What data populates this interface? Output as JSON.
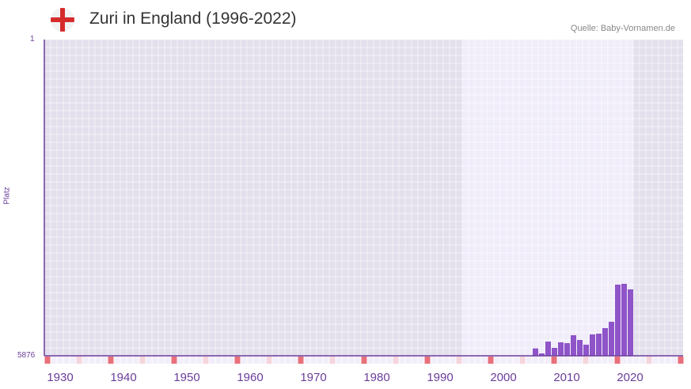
{
  "header": {
    "title": "Zuri in England (1996-2022)",
    "source": "Quelle: Baby-Vornamen.de",
    "flag_icon": "england-flag-icon"
  },
  "chart_data": {
    "type": "bar",
    "title": "Zuri in England (1996-2022)",
    "ylabel": "Platz",
    "ylim": [
      5876,
      1
    ],
    "y_ticks": [
      "1",
      "5876"
    ],
    "xlim": [
      1928,
      2028
    ],
    "x_ticks": [
      "1930",
      "1940",
      "1950",
      "1960",
      "1970",
      "1980",
      "1990",
      "2000",
      "2010",
      "2020"
    ],
    "highlight_range": [
      1994,
      2020
    ],
    "x": [
      2005,
      2006,
      2007,
      2008,
      2009,
      2010,
      2011,
      2012,
      2013,
      2014,
      2015,
      2016,
      2017,
      2018,
      2019,
      2020
    ],
    "values": [
      5739,
      5832,
      5612,
      5729,
      5626,
      5641,
      5494,
      5582,
      5670,
      5479,
      5465,
      5362,
      5244,
      4554,
      4539,
      4642
    ],
    "colors": {
      "bar": "#8e54c8",
      "axis": "#6a3d9a",
      "marker": "#e8707a",
      "marker_light": "#f5d5dc"
    }
  }
}
